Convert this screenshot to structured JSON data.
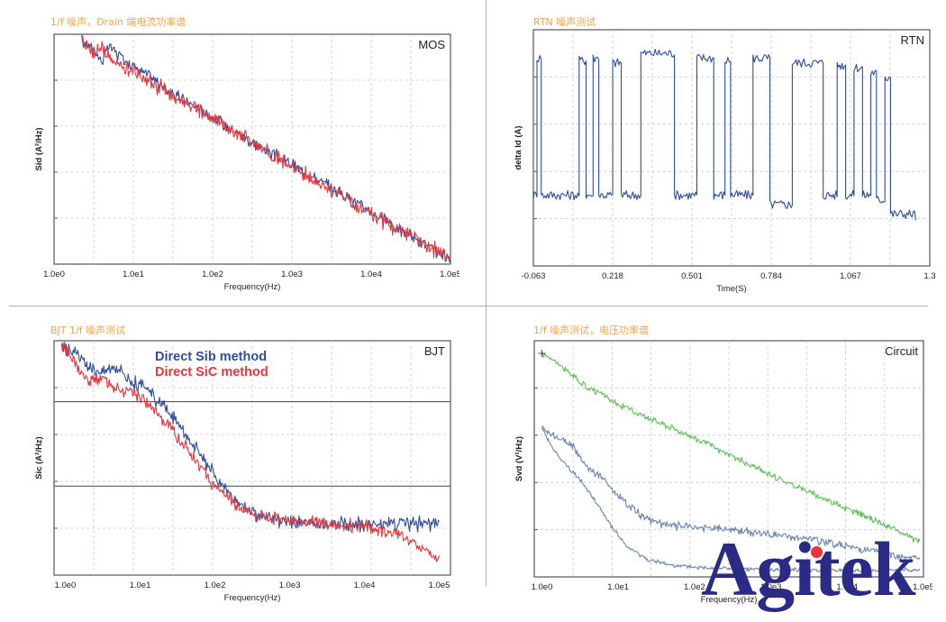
{
  "captions": {
    "mos": "1/f 噪声，Drain 端电流功率谱",
    "rtn": "RTN 噪声测试",
    "bjt": "BJT 1/f 噪声测试",
    "circuit": "1/f 噪声测试，电压功率谱"
  },
  "logo": {
    "text": "Agitek"
  },
  "colors": {
    "blue": "#2e4d9c",
    "red": "#e8363b",
    "green": "#5cbf55",
    "steel": "#6b86b2",
    "accent": "#f0a34a"
  },
  "chart_data": [
    {
      "id": "mos",
      "type": "line",
      "tag": "MOS",
      "xlabel": "Frequency(Hz)",
      "ylabel": "Sid (A²/Hz)",
      "xscale": "log",
      "xticks": [
        "1.0e0",
        "1.0e1",
        "1.0e2",
        "1.0e3",
        "1.0e4",
        "1.0e5"
      ],
      "xlim": [
        0,
        5
      ],
      "ylim": [
        0,
        10
      ],
      "series": [
        {
          "name": "blue",
          "color": "#2e4d9c",
          "x": [
            0.35,
            0.5,
            0.6,
            0.7,
            0.85,
            1.0,
            1.2,
            1.5,
            2.0,
            2.5,
            3.0,
            3.5,
            4.0,
            4.5,
            5.0
          ],
          "y": [
            9.7,
            9.4,
            8.8,
            9.5,
            9.0,
            8.6,
            8.2,
            7.4,
            6.4,
            5.3,
            4.3,
            3.3,
            2.3,
            1.2,
            0.15
          ],
          "noise": 0.25
        },
        {
          "name": "red",
          "color": "#e8363b",
          "x": [
            0.35,
            0.5,
            0.6,
            0.7,
            0.85,
            1.0,
            1.2,
            1.5,
            2.0,
            2.5,
            3.0,
            3.5,
            4.0,
            4.5,
            5.0
          ],
          "y": [
            9.7,
            9.2,
            9.4,
            8.9,
            8.6,
            8.4,
            8.0,
            7.3,
            6.3,
            5.3,
            4.2,
            3.2,
            2.2,
            1.2,
            0.2
          ],
          "noise": 0.3
        }
      ]
    },
    {
      "id": "rtn",
      "type": "line",
      "tag": "RTN",
      "xlabel": "Time(S)",
      "ylabel": "delta Id (A)",
      "xticks": [
        "-0.063",
        "0.218",
        "0.501",
        "0.784",
        "1.067",
        "1.3"
      ],
      "xlim": [
        -0.063,
        1.35
      ],
      "ylim": [
        0,
        1
      ],
      "levels": {
        "high": 0.87,
        "low": 0.29
      },
      "series": [
        {
          "name": "rtn",
          "color": "#2e4d9c",
          "x": [
            -0.063,
            -0.05,
            -0.05,
            -0.035,
            -0.035,
            0.1,
            0.1,
            0.125,
            0.125,
            0.15,
            0.15,
            0.17,
            0.17,
            0.22,
            0.22,
            0.25,
            0.25,
            0.32,
            0.32,
            0.44,
            0.44,
            0.52,
            0.52,
            0.58,
            0.58,
            0.62,
            0.62,
            0.64,
            0.64,
            0.72,
            0.72,
            0.78,
            0.78,
            0.86,
            0.86,
            0.97,
            0.97,
            1.02,
            1.02,
            1.05,
            1.05,
            1.08,
            1.08,
            1.11,
            1.11,
            1.14,
            1.14,
            1.16,
            1.16,
            1.19,
            1.19,
            1.21,
            1.21,
            1.3
          ],
          "y": [
            0.3,
            0.3,
            0.88,
            0.88,
            0.3,
            0.3,
            0.87,
            0.87,
            0.3,
            0.3,
            0.88,
            0.88,
            0.3,
            0.3,
            0.86,
            0.86,
            0.3,
            0.3,
            0.9,
            0.9,
            0.3,
            0.3,
            0.88,
            0.88,
            0.3,
            0.3,
            0.87,
            0.87,
            0.3,
            0.3,
            0.88,
            0.88,
            0.26,
            0.26,
            0.86,
            0.86,
            0.3,
            0.3,
            0.85,
            0.85,
            0.3,
            0.3,
            0.84,
            0.84,
            0.3,
            0.3,
            0.82,
            0.82,
            0.28,
            0.28,
            0.8,
            0.8,
            0.22,
            0.2
          ],
          "noise": 0.02
        }
      ]
    },
    {
      "id": "bjt",
      "type": "line",
      "tag": "BJT",
      "xlabel": "Frequency(Hz)",
      "ylabel": "Sic (A²/Hz)",
      "xscale": "log",
      "xticks": [
        "1.0e0",
        "1.0e1",
        "1.0e2",
        "1.0e3",
        "1.0e4",
        "1.0e5"
      ],
      "xlim": [
        -0.15,
        5.15
      ],
      "ylim": [
        0,
        10
      ],
      "hlines": [
        7.4,
        3.8
      ],
      "legend": [
        "Direct Sib method",
        "Direct SiC method"
      ],
      "series": [
        {
          "name": "Direct Sib method",
          "color": "#2e4d9c",
          "x": [
            -0.05,
            0.1,
            0.3,
            0.5,
            0.7,
            0.9,
            1.1,
            1.4,
            1.7,
            2.0,
            2.3,
            2.6,
            3.0,
            3.5,
            4.0,
            4.5,
            5.0
          ],
          "y": [
            9.8,
            9.6,
            8.9,
            8.7,
            9.0,
            8.2,
            7.9,
            6.9,
            5.6,
            4.2,
            3.0,
            2.5,
            2.3,
            2.2,
            2.2,
            2.2,
            2.2
          ],
          "noise": 0.28
        },
        {
          "name": "Direct SiC method",
          "color": "#e8363b",
          "x": [
            -0.05,
            0.1,
            0.3,
            0.5,
            0.7,
            0.9,
            1.1,
            1.4,
            1.7,
            2.0,
            2.3,
            2.6,
            3.0,
            3.5,
            4.0,
            4.5,
            4.8,
            5.0
          ],
          "y": [
            9.8,
            9.2,
            8.3,
            8.4,
            8.0,
            7.8,
            7.3,
            6.3,
            5.1,
            3.8,
            2.9,
            2.5,
            2.3,
            2.2,
            2.1,
            1.7,
            1.1,
            0.6
          ],
          "noise": 0.25
        }
      ]
    },
    {
      "id": "circuit",
      "type": "line",
      "tag": "Circuit",
      "xlabel": "Frequency(Hz)",
      "ylabel": "Svd (V²/Hz)",
      "xscale": "log",
      "xticks": [
        "1.0e0",
        "1.0e1",
        "1.0e2",
        "1.0e3",
        "1.0e4",
        "1.0e5"
      ],
      "xlim": [
        -0.1,
        5.0
      ],
      "ylim": [
        0,
        10
      ],
      "series": [
        {
          "name": "green",
          "color": "#5cbf55",
          "x": [
            0.0,
            0.3,
            0.6,
            0.8,
            1.0,
            1.5,
            2.0,
            2.5,
            3.0,
            3.5,
            4.0,
            4.5,
            4.95
          ],
          "y": [
            9.5,
            8.8,
            8.0,
            7.7,
            7.3,
            6.6,
            5.9,
            5.1,
            4.3,
            3.6,
            2.9,
            2.2,
            1.5
          ],
          "noise": 0.12
        },
        {
          "name": "steel-1",
          "color": "#6b86b2",
          "x": [
            0.0,
            0.2,
            0.4,
            0.6,
            0.8,
            1.0,
            1.3,
            1.6,
            2.0,
            2.5,
            3.0,
            3.5,
            4.0,
            4.5,
            4.95
          ],
          "y": [
            6.3,
            5.9,
            5.6,
            4.6,
            4.2,
            3.4,
            2.6,
            2.2,
            2.1,
            2.0,
            1.8,
            1.6,
            1.3,
            1.0,
            0.8
          ],
          "noise": 0.15
        },
        {
          "name": "steel-2",
          "color": "#6b86b2",
          "x": [
            0.0,
            0.15,
            0.3,
            0.5,
            0.7,
            0.9,
            1.1,
            1.4,
            1.7,
            2.0,
            2.5,
            3.0,
            3.5,
            4.0,
            4.5,
            4.95
          ],
          "y": [
            6.3,
            5.4,
            4.8,
            4.1,
            3.2,
            2.2,
            1.3,
            0.7,
            0.5,
            0.4,
            0.35,
            0.3,
            0.3,
            0.28,
            0.28,
            0.3
          ],
          "noise": 0.08
        }
      ]
    }
  ]
}
